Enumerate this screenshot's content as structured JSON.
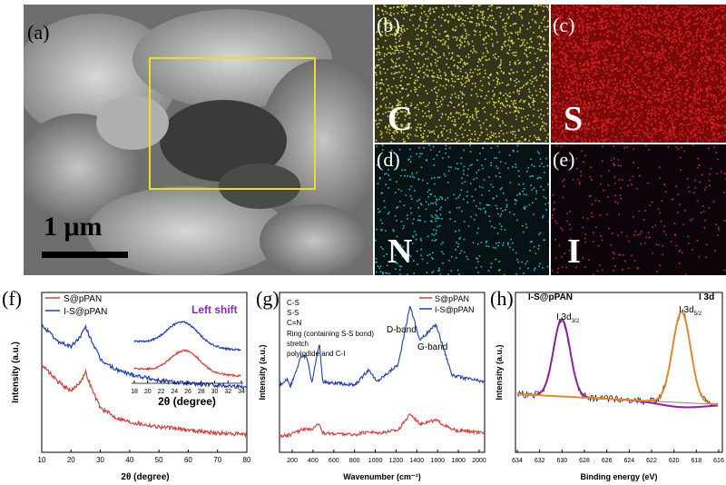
{
  "panels": {
    "a": {
      "label": "(a)",
      "scale_bar": "1 μm"
    },
    "b": {
      "label": "(b)",
      "element": "C",
      "color": "#d6d64a",
      "bg": "#34331c"
    },
    "c": {
      "label": "(c)",
      "element": "S",
      "color": "#e02020",
      "bg": "#7a0a0a"
    },
    "d": {
      "label": "(d)",
      "element": "N",
      "color": "#20b8d0",
      "bg": "#061214"
    },
    "e": {
      "label": "(e)",
      "element": "I",
      "color": "#c02080",
      "bg": "#0c0408"
    }
  },
  "xrd": {
    "label": "(f)",
    "legend": [
      "S@pPAN",
      "I-S@pPAN"
    ],
    "ylabel": "Intensity (a.u.)",
    "xlabel": "2θ (degree)",
    "xticks": [
      "10",
      "20",
      "30",
      "40",
      "50",
      "60",
      "70",
      "80"
    ],
    "inset_xlabel": "2θ (degree)",
    "inset_xticks": [
      "18",
      "20",
      "22",
      "24",
      "26",
      "28",
      "30",
      "32",
      "34"
    ],
    "annotation": "Left shift"
  },
  "raman": {
    "label": "(g)",
    "legend": [
      "S@pPAN",
      "I-S@pPAN"
    ],
    "markers": [
      "C-S",
      "S-S",
      "C=N",
      "Ring (containing S-S bond)",
      "stretch",
      "polyiodide and C-I"
    ],
    "dband": "D-band",
    "gband": "G-band",
    "ylabel": "Intensity (a.u.)",
    "xlabel": "Wavenumber (cm⁻¹)",
    "xticks": [
      "200",
      "400",
      "600",
      "800",
      "1000",
      "1200",
      "1400",
      "1600",
      "1800",
      "2000"
    ]
  },
  "xps": {
    "label": "(h)",
    "sample": "I-S@pPAN",
    "title": "I 3d",
    "peak1": "I 3d",
    "peak1_sub": "3/2",
    "peak2": "I 3d",
    "peak2_sub": "5/2",
    "ylabel": "Intensity (a.u.)",
    "xlabel": "Binding energy (eV)",
    "xticks": [
      "634",
      "632",
      "630",
      "628",
      "626",
      "624",
      "622",
      "620",
      "618",
      "616"
    ]
  },
  "chart_data": [
    {
      "type": "line",
      "xlabel": "2θ (degree)",
      "ylabel": "Intensity (a.u.)",
      "xlim": [
        10,
        80
      ],
      "series": [
        {
          "name": "S@pPAN",
          "color": "#d04040",
          "x": [
            10,
            15,
            20,
            23,
            25,
            27,
            30,
            35,
            40,
            50,
            60,
            70,
            80
          ],
          "y": [
            0.55,
            0.45,
            0.38,
            0.44,
            0.5,
            0.4,
            0.28,
            0.22,
            0.19,
            0.16,
            0.14,
            0.12,
            0.11
          ]
        },
        {
          "name": "I-S@pPAN",
          "color": "#1f3fb0",
          "x": [
            10,
            15,
            20,
            23,
            25,
            27,
            30,
            35,
            40,
            50,
            60,
            70,
            80
          ],
          "y": [
            0.8,
            0.7,
            0.66,
            0.72,
            0.78,
            0.7,
            0.58,
            0.52,
            0.49,
            0.45,
            0.43,
            0.42,
            0.41
          ]
        }
      ],
      "annotation": "Left shift"
    },
    {
      "type": "line",
      "xlabel": "Wavenumber (cm⁻¹)",
      "ylabel": "Intensity (a.u.)",
      "xlim": [
        100,
        2000
      ],
      "series": [
        {
          "name": "S@pPAN",
          "color": "#d04040",
          "x": [
            100,
            200,
            300,
            350,
            400,
            470,
            500,
            800,
            930,
            1000,
            1200,
            1310,
            1400,
            1550,
            1700,
            2000
          ],
          "y": [
            0.1,
            0.11,
            0.14,
            0.15,
            0.14,
            0.18,
            0.12,
            0.11,
            0.13,
            0.12,
            0.14,
            0.24,
            0.18,
            0.2,
            0.14,
            0.12
          ]
        },
        {
          "name": "I-S@pPAN",
          "color": "#1f3fb0",
          "x": [
            100,
            170,
            200,
            300,
            350,
            400,
            470,
            500,
            800,
            930,
            1000,
            1200,
            1310,
            1400,
            1550,
            1700,
            2000
          ],
          "y": [
            0.42,
            0.46,
            0.41,
            0.6,
            0.6,
            0.44,
            0.68,
            0.44,
            0.42,
            0.52,
            0.44,
            0.55,
            0.92,
            0.7,
            0.8,
            0.48,
            0.44
          ]
        }
      ]
    },
    {
      "type": "line",
      "xlabel": "Binding energy (eV)",
      "ylabel": "Intensity (a.u.)",
      "xlim": [
        634,
        615
      ],
      "series": [
        {
          "name": "I 3d3/2",
          "color": "#9020a0",
          "peak_x": 629.8
        },
        {
          "name": "I 3d5/2",
          "color": "#e08a30",
          "peak_x": 618.5
        }
      ]
    }
  ]
}
